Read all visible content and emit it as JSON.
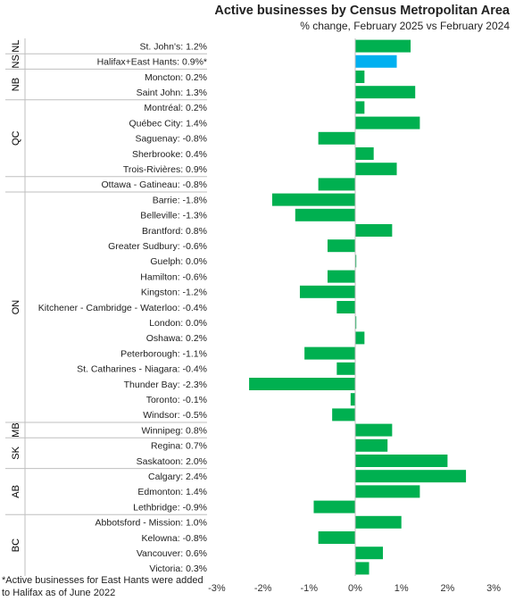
{
  "chart_data": {
    "type": "bar",
    "orientation": "horizontal",
    "title": "Active businesses  by Census Metropolitan Area",
    "subtitle": "% change, February 2025 vs February  2024",
    "xlim": [
      -3,
      3
    ],
    "x_ticks": [
      "-3%",
      "-2%",
      "-1%",
      "0%",
      "1%",
      "2%",
      "3%"
    ],
    "categories": [
      "St. John's: 1.2%",
      "Halifax+East Hants: 0.9%*",
      "Moncton: 0.2%",
      "Saint John: 1.3%",
      "Montréal: 0.2%",
      "Québec City: 1.4%",
      "Saguenay: -0.8%",
      "Sherbrooke: 0.4%",
      "Trois-Rivières: 0.9%",
      "Ottawa - Gatineau: -0.8%",
      "Barrie: -1.8%",
      "Belleville: -1.3%",
      "Brantford: 0.8%",
      "Greater Sudbury: -0.6%",
      "Guelph: 0.0%",
      "Hamilton: -0.6%",
      "Kingston: -1.2%",
      "Kitchener - Cambridge - Waterloo: -0.4%",
      "London: 0.0%",
      "Oshawa: 0.2%",
      "Peterborough: -1.1%",
      "St. Catharines - Niagara: -0.4%",
      "Thunder Bay: -2.3%",
      "Toronto: -0.1%",
      "Windsor: -0.5%",
      "Winnipeg: 0.8%",
      "Regina: 0.7%",
      "Saskatoon: 2.0%",
      "Calgary: 2.4%",
      "Edmonton: 1.4%",
      "Lethbridge: -0.9%",
      "Abbotsford - Mission: 1.0%",
      "Kelowna: -0.8%",
      "Vancouver: 0.6%",
      "Victoria: 0.3%"
    ],
    "values": [
      1.2,
      0.9,
      0.2,
      1.3,
      0.2,
      1.4,
      -0.8,
      0.4,
      0.9,
      -0.8,
      -1.8,
      -1.3,
      0.8,
      -0.6,
      0.0,
      -0.6,
      -1.2,
      -0.4,
      0.0,
      0.2,
      -1.1,
      -0.4,
      -2.3,
      -0.1,
      -0.5,
      0.8,
      0.7,
      2.0,
      2.4,
      1.4,
      -0.9,
      1.0,
      -0.8,
      0.6,
      0.3
    ],
    "highlight_index": 1,
    "groups": [
      {
        "label": "NL",
        "count": 1
      },
      {
        "label": "NS",
        "count": 1
      },
      {
        "label": "NB",
        "count": 2
      },
      {
        "label": "QC",
        "count": 5
      },
      {
        "label": "",
        "count": 1
      },
      {
        "label": "ON",
        "count": 15
      },
      {
        "label": "MB",
        "count": 1
      },
      {
        "label": "SK",
        "count": 2
      },
      {
        "label": "AB",
        "count": 3
      },
      {
        "label": "BC",
        "count": 4
      }
    ],
    "colors": {
      "bar": "#00b050",
      "highlight": "#00b0f0",
      "axis": "#bfbfbf"
    }
  },
  "footnote": "*Active businesses for East Hants were added to Halifax as of June 2022"
}
